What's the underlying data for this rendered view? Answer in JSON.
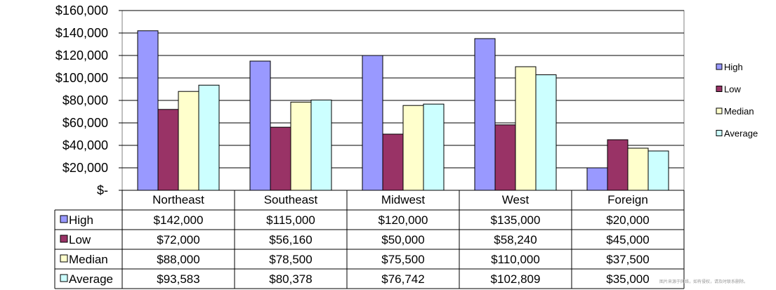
{
  "colors": {
    "High": "#9999ff",
    "Low": "#993366",
    "Median": "#ffffcc",
    "Average": "#ccffff",
    "grid": "#000000",
    "axis": "#808080"
  },
  "chart_data": {
    "type": "bar",
    "categories": [
      "Northeast",
      "Southeast",
      "Midwest",
      "West",
      "Foreign"
    ],
    "series": [
      {
        "name": "High",
        "values": [
          142000,
          115000,
          120000,
          135000,
          20000
        ],
        "labels": [
          "$142,000",
          "$115,000",
          "$120,000",
          "$135,000",
          "$20,000"
        ]
      },
      {
        "name": "Low",
        "values": [
          72000,
          56160,
          50000,
          58240,
          45000
        ],
        "labels": [
          "$72,000",
          "$56,160",
          "$50,000",
          "$58,240",
          "$45,000"
        ]
      },
      {
        "name": "Median",
        "values": [
          88000,
          78500,
          75500,
          110000,
          37500
        ],
        "labels": [
          "$88,000",
          "$78,500",
          "$75,500",
          "$110,000",
          "$37,500"
        ]
      },
      {
        "name": "Average",
        "values": [
          93583,
          80378,
          76742,
          102809,
          35000
        ],
        "labels": [
          "$93,583",
          "$80,378",
          "$76,742",
          "$102,809",
          "$35,000"
        ]
      }
    ],
    "ylim": [
      0,
      160000
    ],
    "yticks": [
      0,
      20000,
      40000,
      60000,
      80000,
      100000,
      120000,
      140000,
      160000
    ],
    "ytick_labels": [
      "$-",
      "$20,000",
      "$40,000",
      "$60,000",
      "$80,000",
      "$100,000",
      "$120,000",
      "$140,000",
      "$160,000"
    ],
    "grid": true,
    "legend_position": "right",
    "data_table": true
  },
  "watermark": "图片来源于网络，如有侵权，请及时联系删除。"
}
